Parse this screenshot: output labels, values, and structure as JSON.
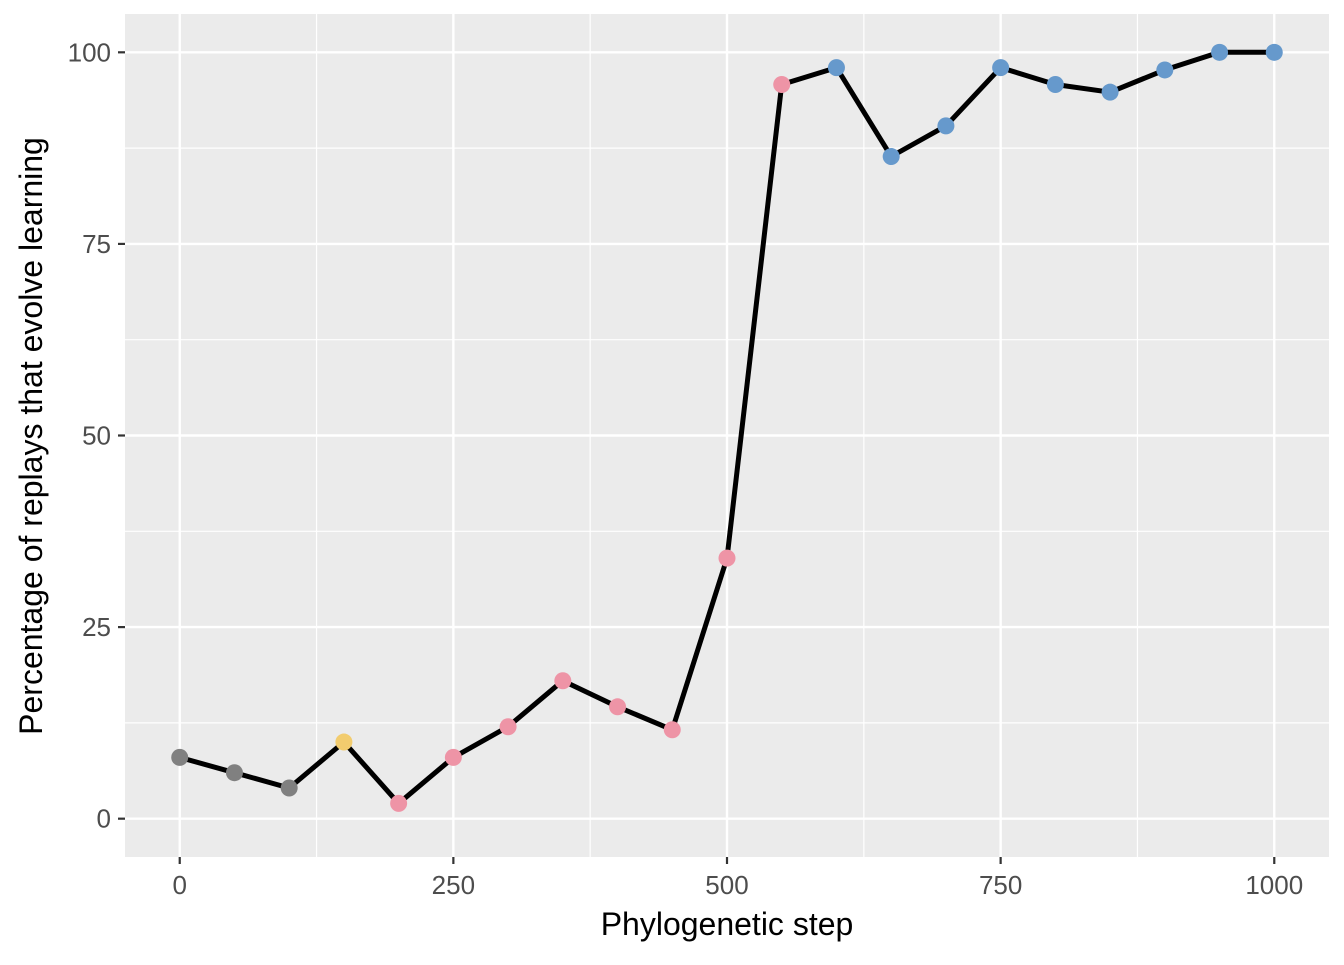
{
  "chart_data": {
    "type": "line",
    "xlabel": "Phylogenetic step",
    "ylabel": "Percentage of replays that evolve learning",
    "xlim": [
      -50,
      1050
    ],
    "ylim": [
      -5,
      105
    ],
    "x_ticks": [
      0,
      250,
      500,
      750,
      1000
    ],
    "x_tick_labels": [
      "0",
      "250",
      "500",
      "750",
      "1000"
    ],
    "y_ticks": [
      0,
      25,
      50,
      75,
      100
    ],
    "y_tick_labels": [
      "0",
      "25",
      "50",
      "75",
      "100"
    ],
    "grid": true,
    "legend": "none",
    "line_color": "#000000",
    "panel_background": "#ebebeb",
    "points": [
      {
        "x": 0,
        "y": 8,
        "color": "#808080"
      },
      {
        "x": 50,
        "y": 6,
        "color": "#808080"
      },
      {
        "x": 100,
        "y": 4,
        "color": "#808080"
      },
      {
        "x": 150,
        "y": 10,
        "color": "#f2cc6e"
      },
      {
        "x": 200,
        "y": 2,
        "color": "#ee94a6"
      },
      {
        "x": 250,
        "y": 8,
        "color": "#ee94a6"
      },
      {
        "x": 300,
        "y": 12,
        "color": "#ee94a6"
      },
      {
        "x": 350,
        "y": 18,
        "color": "#ee94a6"
      },
      {
        "x": 400,
        "y": 14.6,
        "color": "#ee94a6"
      },
      {
        "x": 450,
        "y": 11.6,
        "color": "#ee94a6"
      },
      {
        "x": 500,
        "y": 34,
        "color": "#ee94a6"
      },
      {
        "x": 550,
        "y": 95.8,
        "color": "#ee94a6"
      },
      {
        "x": 600,
        "y": 98,
        "color": "#6699cc"
      },
      {
        "x": 650,
        "y": 86.4,
        "color": "#6699cc"
      },
      {
        "x": 700,
        "y": 90.4,
        "color": "#6699cc"
      },
      {
        "x": 750,
        "y": 98,
        "color": "#6699cc"
      },
      {
        "x": 800,
        "y": 95.8,
        "color": "#6699cc"
      },
      {
        "x": 850,
        "y": 94.8,
        "color": "#6699cc"
      },
      {
        "x": 900,
        "y": 97.7,
        "color": "#6699cc"
      },
      {
        "x": 950,
        "y": 100,
        "color": "#6699cc"
      },
      {
        "x": 1000,
        "y": 100,
        "color": "#6699cc"
      }
    ]
  }
}
